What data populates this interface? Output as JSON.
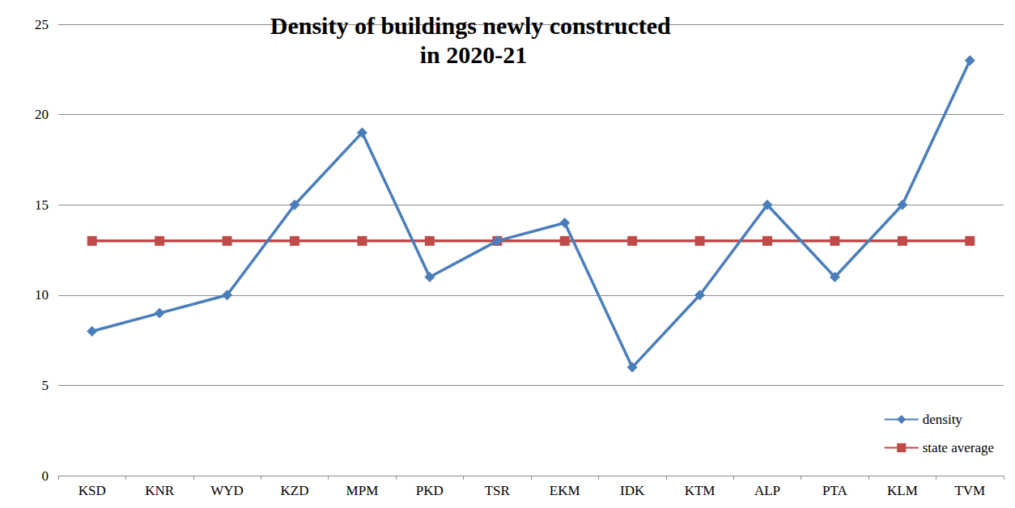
{
  "chart_data": {
    "type": "line",
    "title": "Density of buildings newly constructed in 2020-21",
    "categories": [
      "KSD",
      "KNR",
      "WYD",
      "KZD",
      "MPM",
      "PKD",
      "TSR",
      "EKM",
      "IDK",
      "KTM",
      "ALP",
      "PTA",
      "KLM",
      "TVM"
    ],
    "series": [
      {
        "name": "density",
        "color": "#4a7ebb",
        "marker": "diamond",
        "values": [
          8,
          9,
          10,
          15,
          19,
          11,
          13,
          14,
          6,
          10,
          15,
          11,
          15,
          23
        ]
      },
      {
        "name": "state average",
        "color": "#be4b48",
        "marker": "square",
        "values": [
          13,
          13,
          13,
          13,
          13,
          13,
          13,
          13,
          13,
          13,
          13,
          13,
          13,
          13
        ]
      }
    ],
    "ylim": [
      0,
      25
    ],
    "yticks": [
      0,
      5,
      10,
      15,
      20,
      25
    ],
    "grid": true,
    "legend": "lower right"
  }
}
